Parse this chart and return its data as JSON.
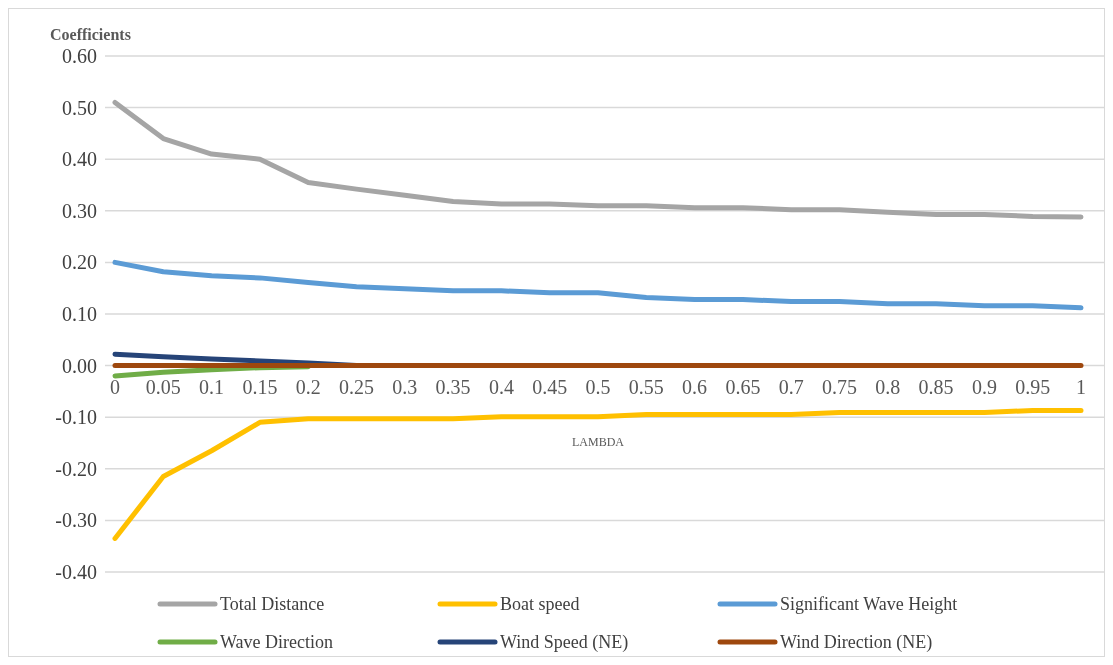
{
  "chart_data": {
    "type": "line",
    "ylabel": "Coefficients",
    "xlabel": "LAMBDA",
    "categories": [
      "0",
      "0.05",
      "0.1",
      "0.15",
      "0.2",
      "0.25",
      "0.3",
      "0.35",
      "0.4",
      "0.45",
      "0.5",
      "0.55",
      "0.6",
      "0.65",
      "0.7",
      "0.75",
      "0.8",
      "0.85",
      "0.9",
      "0.95",
      "1"
    ],
    "series": [
      {
        "name": "Total Distance",
        "color": "#a5a5a5",
        "values": [
          0.51,
          0.44,
          0.41,
          0.4,
          0.355,
          0.342,
          0.33,
          0.318,
          0.313,
          0.313,
          0.31,
          0.31,
          0.306,
          0.306,
          0.302,
          0.302,
          0.297,
          0.293,
          0.293,
          0.289,
          0.288
        ]
      },
      {
        "name": "Boat speed",
        "color": "#ffc000",
        "values": [
          -0.335,
          -0.215,
          -0.165,
          -0.11,
          -0.103,
          -0.103,
          -0.103,
          -0.103,
          -0.099,
          -0.099,
          -0.099,
          -0.095,
          -0.095,
          -0.095,
          -0.095,
          -0.091,
          -0.091,
          -0.091,
          -0.091,
          -0.087,
          -0.087
        ]
      },
      {
        "name": "Significant Wave Height",
        "color": "#5b9bd5",
        "values": [
          0.2,
          0.182,
          0.174,
          0.17,
          0.161,
          0.153,
          0.149,
          0.145,
          0.145,
          0.141,
          0.141,
          0.132,
          0.128,
          0.128,
          0.124,
          0.124,
          0.12,
          0.12,
          0.116,
          0.116,
          0.112
        ]
      },
      {
        "name": "Wave Direction",
        "color": "#70ad47",
        "values": [
          -0.02,
          -0.013,
          -0.008,
          -0.004,
          -0.002,
          null,
          null,
          null,
          null,
          null,
          null,
          null,
          null,
          null,
          null,
          null,
          null,
          null,
          null,
          null,
          null
        ]
      },
      {
        "name": "Wind Speed (NE)",
        "color": "#264478",
        "values": [
          0.022,
          0.017,
          0.013,
          0.009,
          0.005,
          0,
          null,
          null,
          null,
          null,
          null,
          null,
          null,
          null,
          null,
          null,
          null,
          null,
          null,
          null,
          null
        ]
      },
      {
        "name": "Wind Direction (NE)",
        "color": "#9e480e",
        "values": [
          0,
          0,
          0,
          0,
          0,
          0,
          0,
          0,
          0,
          0,
          0,
          0,
          0,
          0,
          0,
          0,
          0,
          0,
          0,
          0,
          0
        ]
      }
    ],
    "ylim": [
      -0.4,
      0.6
    ],
    "yticks": [
      {
        "value": -0.4,
        "label": "-0.40"
      },
      {
        "value": -0.3,
        "label": "-0.30"
      },
      {
        "value": -0.2,
        "label": "-0.20"
      },
      {
        "value": -0.1,
        "label": "-0.10"
      },
      {
        "value": 0,
        "label": "0.00"
      },
      {
        "value": 0.1,
        "label": "0.10"
      },
      {
        "value": 0.2,
        "label": "0.20"
      },
      {
        "value": 0.3,
        "label": "0.30"
      },
      {
        "value": 0.4,
        "label": "0.40"
      },
      {
        "value": 0.5,
        "label": "0.50"
      },
      {
        "value": 0.6,
        "label": "0.60"
      }
    ],
    "grid": "y",
    "legend": "bottom",
    "marker": "none",
    "line_style": "solid"
  }
}
